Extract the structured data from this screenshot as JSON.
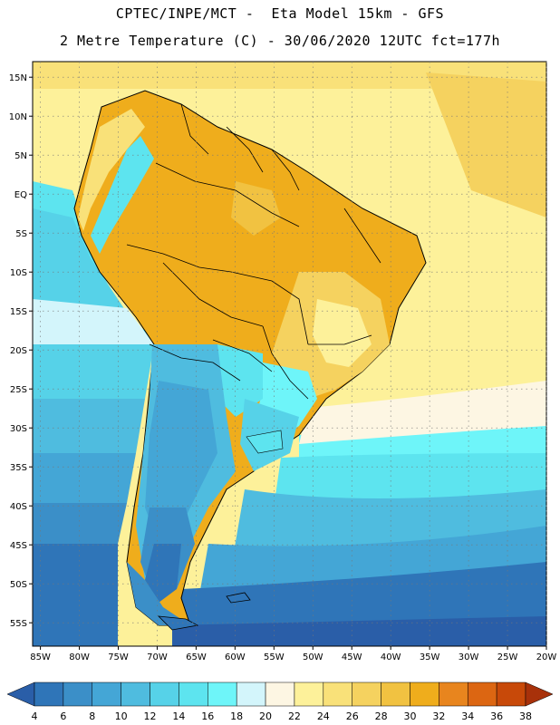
{
  "header": {
    "line1": "CPTEC/INPE/MCT -  Eta Model 15km - GFS",
    "line2": "2 Metre Temperature (C) - 30/06/2020 12UTC fct=177h"
  },
  "map": {
    "lat_labels": [
      "15N",
      "10N",
      "5N",
      "EQ",
      "5S",
      "10S",
      "15S",
      "20S",
      "25S",
      "30S",
      "35S",
      "40S",
      "45S",
      "50S",
      "55S"
    ],
    "lon_labels": [
      "85W",
      "80W",
      "75W",
      "70W",
      "65W",
      "60W",
      "55W",
      "50W",
      "45W",
      "40W",
      "35W",
      "30W",
      "25W",
      "20W"
    ],
    "lat_range": [
      17,
      -58
    ],
    "lon_range": [
      -86,
      -20
    ],
    "gridline_style": "dotted"
  },
  "legend": {
    "values": [
      "4",
      "6",
      "8",
      "10",
      "12",
      "14",
      "16",
      "18",
      "20",
      "22",
      "24",
      "26",
      "28",
      "30",
      "32",
      "34",
      "36",
      "38"
    ],
    "colors": [
      "#2a5ea8",
      "#2f75b8",
      "#3b8fc8",
      "#44a6d6",
      "#4fbcdf",
      "#56d2e8",
      "#5de4ef",
      "#6ef5f9",
      "#d3f5fb",
      "#fdf6e3",
      "#fdf19a",
      "#f9e179",
      "#f5d25f",
      "#f1c241",
      "#efad1c",
      "#e8851e",
      "#dc6612",
      "#c84909",
      "#a8310a"
    ]
  }
}
